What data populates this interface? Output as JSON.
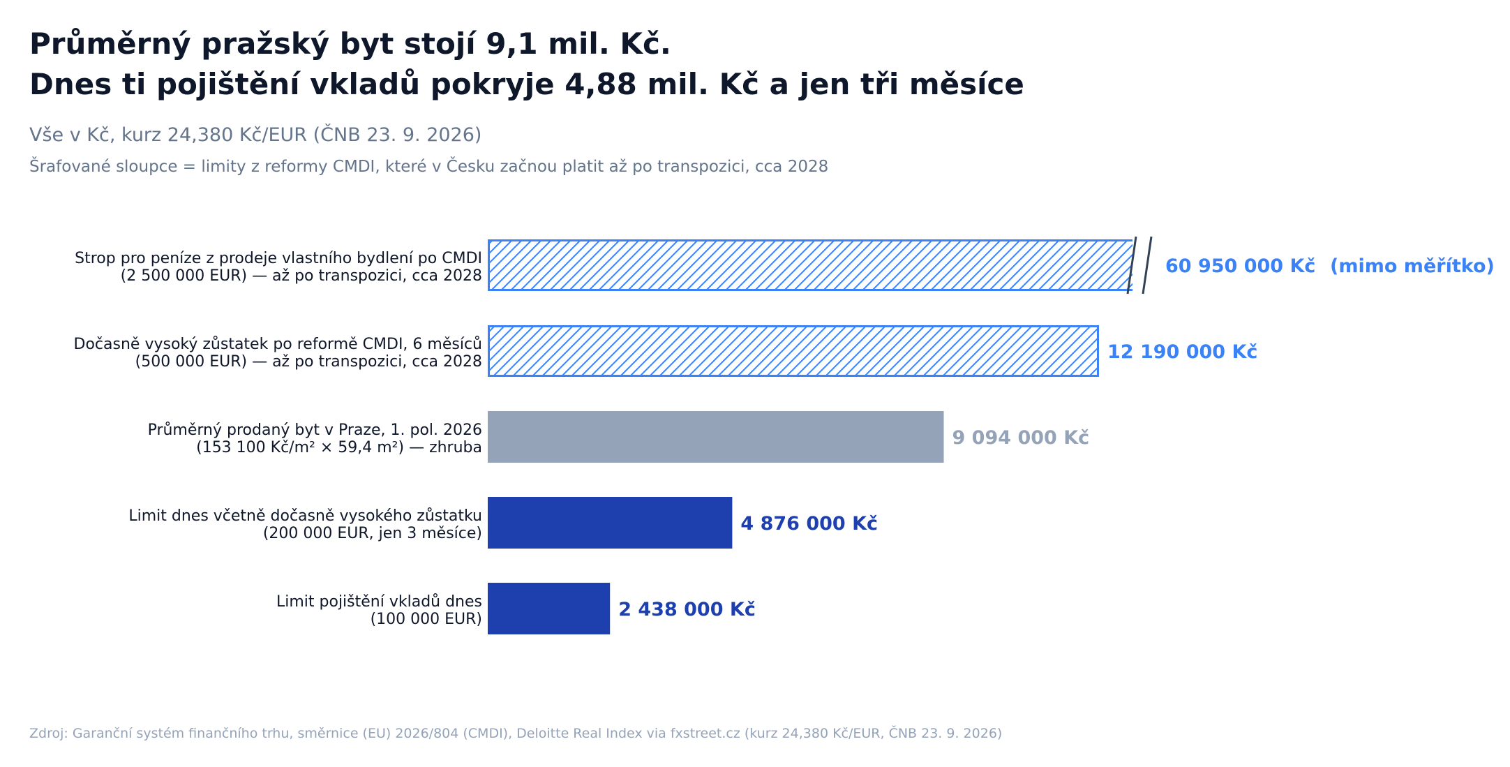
{
  "title_line1": "Průměrný pražský byt stojí 9,1 mil. Kč.",
  "title_line2": "Dnes ti pojištění vkladů pokryje 4,88 mil. Kč a jen tři měsíce",
  "subtitle": "Vše v Kč, kurz 24,380 Kč/EUR (ČNB 23. 9. 2026)",
  "note": "Šrafované sloupce = limity z reformy CMDI, které v Česku začnou platit až po transpozici, cca 2028",
  "source": "Zdroj: Garanční systém finančního trhu, směrnice (EU) 2026/804 (CMDI), Deloitte Real Index via fxstreet.cz (kurz 24,380 Kč/EUR, ČNB 23. 9. 2026)",
  "colors": {
    "reform": "#3b82f6",
    "reference": "#94a3b8",
    "current": "#1e40af",
    "break_mark": "#334155"
  },
  "chart_data": {
    "type": "bar",
    "orientation": "horizontal",
    "axis_break": true,
    "xlim": [
      0,
      12890000
    ],
    "categories": [
      [
        "Strop pro peníze z prodeje vlastního bydlení po CMDI",
        "(2 500 000 EUR) — až po transpozici, cca 2028"
      ],
      [
        "Dočasně vysoký zůstatek po reformě CMDI, 6 měsíců",
        "(500 000 EUR) — až po transpozici, cca 2028"
      ],
      [
        "Průměrný prodaný byt v Praze, 1. pol. 2026",
        "(153 100 Kč/m² × 59,4 m²) — zhruba"
      ],
      [
        "Limit dnes včetně dočasně vysokého zůstatku",
        "(200 000 EUR, jen 3 měsíce)"
      ],
      [
        "Limit pojištění vkladů dnes",
        "(100 000 EUR)"
      ]
    ],
    "values": [
      60950000,
      12190000,
      9094000,
      4876000,
      2438000
    ],
    "value_labels": [
      "60 950 000 Kč",
      "12 190 000 Kč",
      "9 094 000 Kč",
      "4 876 000 Kč",
      "2 438 000 Kč"
    ],
    "styles": [
      "hatched",
      "hatched",
      "solid",
      "solid",
      "solid"
    ],
    "color_keys": [
      "reform",
      "reform",
      "reference",
      "current",
      "current"
    ],
    "off_scale_note": "(mimo měřítko)"
  }
}
